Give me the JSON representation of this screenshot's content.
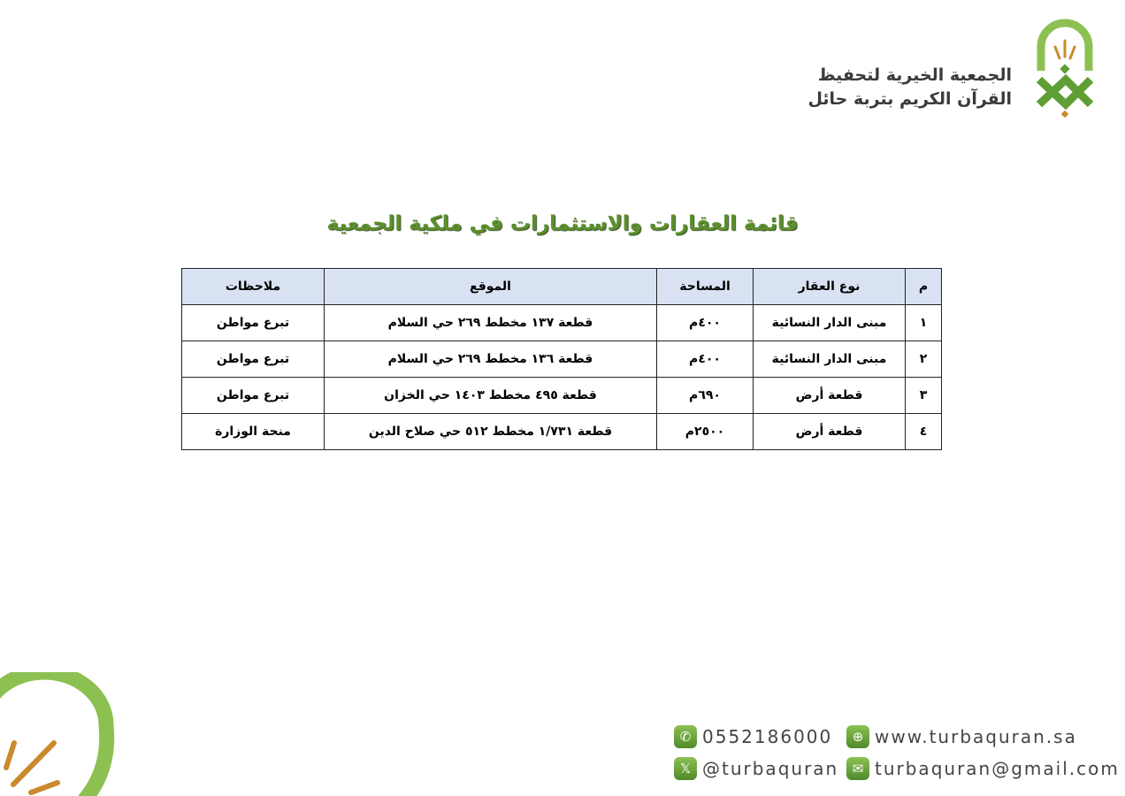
{
  "org": {
    "line1": "الجمعية الخيرية لتحفيظ",
    "line2": "القرآن الكريم بتربة حائل"
  },
  "title": "قائمة العقارات والاستثمارات في ملكية الجمعية",
  "table": {
    "headers": [
      "م",
      "نوع العقار",
      "المساحة",
      "الموقع",
      "ملاحظات"
    ],
    "rows": [
      [
        "١",
        "مبنى الدار النسائية",
        "٤٠٠م",
        "قطعة ١٣٧ مخطط ٢٦٩ حي السلام",
        "تبرع مواطن"
      ],
      [
        "٢",
        "مبنى الدار النسائية",
        "٤٠٠م",
        "قطعة ١٣٦ مخطط ٢٦٩ حي السلام",
        "تبرع مواطن"
      ],
      [
        "٣",
        "قطعة أرض",
        "٦٩٠م",
        "قطعة ٤٩٥ مخطط ١٤٠٣ حي الخزان",
        "تبرع مواطن"
      ],
      [
        "٤",
        "قطعة أرض",
        "٢٥٠٠م",
        "قطعة ١/٧٣١ مخطط ٥١٢ حي صلاح الدين",
        "منحة الوزارة"
      ]
    ]
  },
  "contacts": {
    "phone": "0552186000",
    "website": "www.turbaquran.sa",
    "twitter": "@turbaquran",
    "email": "turbaquran@gmail.com"
  },
  "colors": {
    "brand_green": "#7ab648",
    "accent_orange": "#c98a2e",
    "header_bg": "#d9e2f3"
  }
}
